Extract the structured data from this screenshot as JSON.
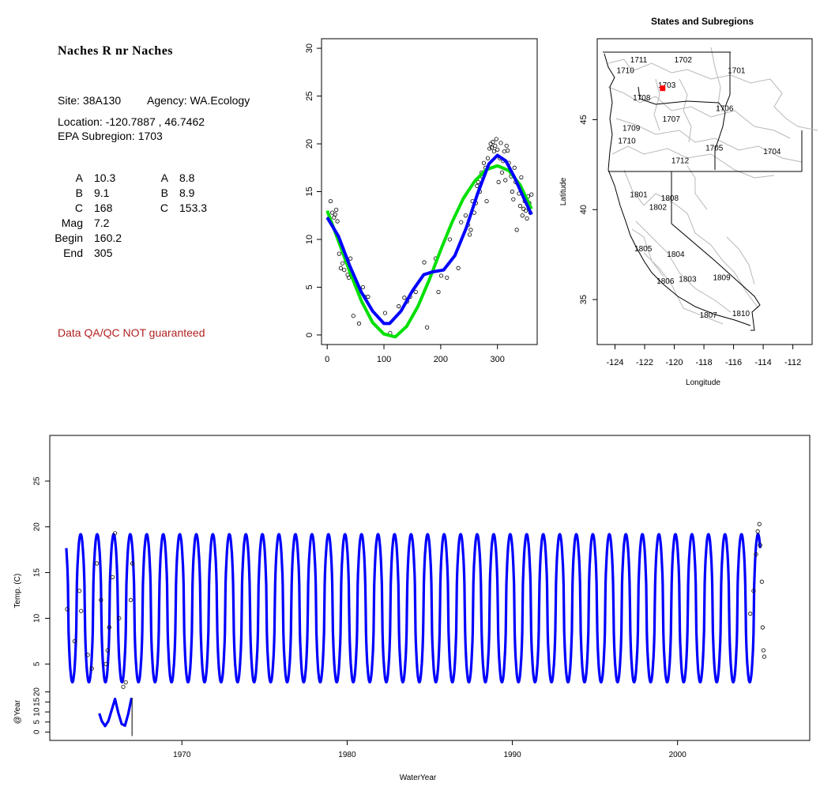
{
  "site": {
    "title": "Naches R nr Naches",
    "site_line": "Site: 38A130",
    "agency_line": "Agency: WA.Ecology",
    "location_line": "Location: -120.7887 , 46.7462",
    "subregion_line": "EPA Subregion: 1703",
    "params_left": [
      {
        "label": "A",
        "value": "10.3"
      },
      {
        "label": "B",
        "value": "9.1"
      },
      {
        "label": "C",
        "value": "168"
      },
      {
        "label": "Mag",
        "value": "7.2"
      },
      {
        "label": "Begin",
        "value": "160.2"
      },
      {
        "label": "End",
        "value": "305"
      }
    ],
    "params_right": [
      {
        "label": "A",
        "value": "8.8"
      },
      {
        "label": "B",
        "value": "8.9"
      },
      {
        "label": "C",
        "value": "153.3"
      }
    ],
    "qa_note": "Data QA/QC NOT guaranteed",
    "qa_color": "#b22222"
  },
  "chart_data": [
    {
      "type": "scatter",
      "title": "",
      "xlabel": "",
      "ylabel": "",
      "xlim": [
        -10,
        370
      ],
      "ylim": [
        -1,
        31
      ],
      "x_ticks": [
        0,
        100,
        200,
        300
      ],
      "y_ticks": [
        0,
        5,
        10,
        15,
        20,
        25,
        30
      ],
      "points": [
        [
          3,
          12.2
        ],
        [
          6,
          14
        ],
        [
          9,
          12.8
        ],
        [
          12,
          12.3
        ],
        [
          14,
          12.6
        ],
        [
          16,
          13.1
        ],
        [
          18,
          11.9
        ],
        [
          21,
          8.5
        ],
        [
          24,
          7
        ],
        [
          27,
          7.5
        ],
        [
          30,
          6.8
        ],
        [
          33,
          7.8
        ],
        [
          36,
          6.3
        ],
        [
          38,
          6
        ],
        [
          41,
          8
        ],
        [
          46,
          2
        ],
        [
          56,
          1.2
        ],
        [
          63,
          5
        ],
        [
          66,
          4
        ],
        [
          72,
          4
        ],
        [
          102,
          2.3
        ],
        [
          111,
          0.2
        ],
        [
          126,
          3
        ],
        [
          136,
          3.9
        ],
        [
          141,
          3.5
        ],
        [
          146,
          4
        ],
        [
          156,
          4.5
        ],
        [
          171,
          7.6
        ],
        [
          176,
          0.8
        ],
        [
          191,
          8
        ],
        [
          196,
          4.5
        ],
        [
          201,
          6.2
        ],
        [
          211,
          6
        ],
        [
          216,
          10
        ],
        [
          231,
          7
        ],
        [
          236,
          11.8
        ],
        [
          244,
          12.5
        ],
        [
          248,
          11.5
        ],
        [
          251,
          10.5
        ],
        [
          253,
          11
        ],
        [
          256,
          14
        ],
        [
          259,
          12.8
        ],
        [
          262,
          13.8
        ],
        [
          264,
          15.6
        ],
        [
          266,
          16
        ],
        [
          269,
          15
        ],
        [
          272,
          17
        ],
        [
          274,
          16.5
        ],
        [
          276,
          18
        ],
        [
          279,
          17.5
        ],
        [
          281,
          14
        ],
        [
          283,
          18.5
        ],
        [
          286,
          19.5
        ],
        [
          288,
          20
        ],
        [
          290,
          19.6
        ],
        [
          292,
          20.2
        ],
        [
          294,
          19.2
        ],
        [
          296,
          19.8
        ],
        [
          298,
          20.5
        ],
        [
          300,
          19.4
        ],
        [
          302,
          16
        ],
        [
          304,
          18.5
        ],
        [
          306,
          20.1
        ],
        [
          308,
          17
        ],
        [
          310,
          18.2
        ],
        [
          312,
          19.2
        ],
        [
          314,
          16.2
        ],
        [
          316,
          19.8
        ],
        [
          318,
          19.3
        ],
        [
          320,
          18
        ],
        [
          322,
          17.2
        ],
        [
          324,
          16.6
        ],
        [
          326,
          15
        ],
        [
          328,
          14.2
        ],
        [
          330,
          17.5
        ],
        [
          332,
          16
        ],
        [
          334,
          11
        ],
        [
          336,
          15.8
        ],
        [
          338,
          14.8
        ],
        [
          340,
          13.5
        ],
        [
          342,
          16.5
        ],
        [
          344,
          12.5
        ],
        [
          346,
          13.2
        ],
        [
          348,
          14
        ],
        [
          350,
          13
        ],
        [
          352,
          12.2
        ],
        [
          354,
          14.5
        ],
        [
          356,
          13.8
        ],
        [
          358,
          12.8
        ],
        [
          360,
          14.7
        ]
      ],
      "series": [
        {
          "color": "#00e000",
          "values": [
            [
              0,
              13
            ],
            [
              20,
              9.8
            ],
            [
              40,
              6.6
            ],
            [
              60,
              3.6
            ],
            [
              80,
              1.3
            ],
            [
              100,
              0.1
            ],
            [
              120,
              -0.2
            ],
            [
              140,
              0.9
            ],
            [
              160,
              3
            ],
            [
              180,
              5.8
            ],
            [
              200,
              8.9
            ],
            [
              220,
              11.8
            ],
            [
              240,
              14.3
            ],
            [
              260,
              16.1
            ],
            [
              280,
              17.3
            ],
            [
              300,
              17.7
            ],
            [
              320,
              17.2
            ],
            [
              340,
              15.7
            ],
            [
              360,
              13.2
            ]
          ]
        },
        {
          "color": "#0000ff",
          "values": [
            [
              0,
              12.3
            ],
            [
              20,
              10.3
            ],
            [
              40,
              7.2
            ],
            [
              60,
              4.5
            ],
            [
              80,
              2.5
            ],
            [
              100,
              1.2
            ],
            [
              110,
              1.2
            ],
            [
              130,
              2.5
            ],
            [
              150,
              4.6
            ],
            [
              170,
              6.3
            ],
            [
              185,
              6.6
            ],
            [
              205,
              6.8
            ],
            [
              225,
              8.3
            ],
            [
              245,
              11.2
            ],
            [
              265,
              14.8
            ],
            [
              285,
              17.9
            ],
            [
              300,
              18.8
            ],
            [
              315,
              18.2
            ],
            [
              330,
              16.5
            ],
            [
              345,
              14.5
            ],
            [
              360,
              12.6
            ]
          ]
        }
      ]
    },
    {
      "type": "scatter",
      "title": "States and Subregions",
      "xlabel": "Longitude",
      "ylabel": "Latitude",
      "xlim": [
        -125.2,
        -110.7
      ],
      "ylim": [
        32.5,
        49.5
      ],
      "x_ticks": [
        -124,
        -122,
        -120,
        -118,
        -116,
        -114,
        -112
      ],
      "y_ticks": [
        35,
        40,
        45
      ],
      "site_marker": {
        "lon": -120.7887,
        "lat": 46.7462,
        "color": "#ff0000"
      },
      "region_labels": [
        {
          "text": "1711",
          "lon": -122.4,
          "lat": 48.3
        },
        {
          "text": "1702",
          "lon": -119.4,
          "lat": 48.3
        },
        {
          "text": "1701",
          "lon": -115.8,
          "lat": 47.7
        },
        {
          "text": "1710",
          "lon": -123.3,
          "lat": 47.7
        },
        {
          "text": "1703",
          "lon": -120.5,
          "lat": 46.9
        },
        {
          "text": "1708",
          "lon": -122.2,
          "lat": 46.2
        },
        {
          "text": "1706",
          "lon": -116.6,
          "lat": 45.6
        },
        {
          "text": "1707",
          "lon": -120.2,
          "lat": 45
        },
        {
          "text": "1709",
          "lon": -122.9,
          "lat": 44.5
        },
        {
          "text": "1710",
          "lon": -123.2,
          "lat": 43.8
        },
        {
          "text": "1705",
          "lon": -117.3,
          "lat": 43.4
        },
        {
          "text": "1704",
          "lon": -113.4,
          "lat": 43.2
        },
        {
          "text": "1712",
          "lon": -119.6,
          "lat": 42.7
        },
        {
          "text": "1801",
          "lon": -122.4,
          "lat": 40.8
        },
        {
          "text": "1808",
          "lon": -120.3,
          "lat": 40.6
        },
        {
          "text": "1802",
          "lon": -121.1,
          "lat": 40.1
        },
        {
          "text": "1805",
          "lon": -122.1,
          "lat": 37.8
        },
        {
          "text": "1804",
          "lon": -119.9,
          "lat": 37.5
        },
        {
          "text": "1809",
          "lon": -116.8,
          "lat": 36.2
        },
        {
          "text": "1803",
          "lon": -119.1,
          "lat": 36.1
        },
        {
          "text": "1806",
          "lon": -120.6,
          "lat": 36
        },
        {
          "text": "1810",
          "lon": -115.5,
          "lat": 34.2
        },
        {
          "text": "1807",
          "lon": -117.7,
          "lat": 34.1
        }
      ]
    },
    {
      "type": "line",
      "title": "",
      "xlabel": "WaterYear",
      "ylabel": "Temp. (C)",
      "xlim": [
        1962,
        2008
      ],
      "ylim": [
        2,
        30
      ],
      "x_ticks": [
        1970,
        1980,
        1990,
        2000
      ],
      "y_ticks": [
        5,
        10,
        15,
        20,
        25
      ],
      "series": [
        {
          "color": "#0000ff",
          "start": 1963,
          "end": 2005,
          "min": 3,
          "max": 19.2
        }
      ],
      "observations": [
        [
          1963.05,
          11
        ],
        [
          1963.5,
          7.5
        ],
        [
          1963.8,
          13
        ],
        [
          1963.9,
          10.8
        ],
        [
          1964.3,
          6
        ],
        [
          1964.55,
          4.5
        ],
        [
          1964.85,
          16
        ],
        [
          1965.1,
          12
        ],
        [
          1965.4,
          5
        ],
        [
          1965.5,
          6.5
        ],
        [
          1965.6,
          9
        ],
        [
          1965.8,
          14.5
        ],
        [
          1965.95,
          19.3
        ],
        [
          1966.2,
          10
        ],
        [
          1966.45,
          2.5
        ],
        [
          1966.6,
          3
        ],
        [
          1966.9,
          12
        ],
        [
          1967,
          16
        ],
        [
          2004.4,
          10.5
        ],
        [
          2004.6,
          13
        ],
        [
          2004.75,
          17
        ],
        [
          2004.85,
          19.5
        ],
        [
          2004.95,
          20.3
        ],
        [
          2005,
          18
        ],
        [
          2005.1,
          14
        ],
        [
          2005.15,
          9
        ],
        [
          2005.2,
          6.5
        ],
        [
          2005.25,
          5.8
        ]
      ],
      "inset": {
        "ylabel": "@Year",
        "ylim": [
          -3,
          23
        ],
        "y_ticks": [
          0,
          5,
          10,
          15,
          20
        ],
        "curve": [
          [
            1965,
            9.3
          ],
          [
            1965.15,
            5.4
          ],
          [
            1965.35,
            3
          ],
          [
            1965.55,
            5.5
          ],
          [
            1965.75,
            11
          ],
          [
            1965.95,
            16.5
          ],
          [
            1966.15,
            9.5
          ],
          [
            1966.35,
            4
          ],
          [
            1966.55,
            3.2
          ],
          [
            1966.75,
            9
          ],
          [
            1966.95,
            17
          ]
        ]
      }
    }
  ]
}
